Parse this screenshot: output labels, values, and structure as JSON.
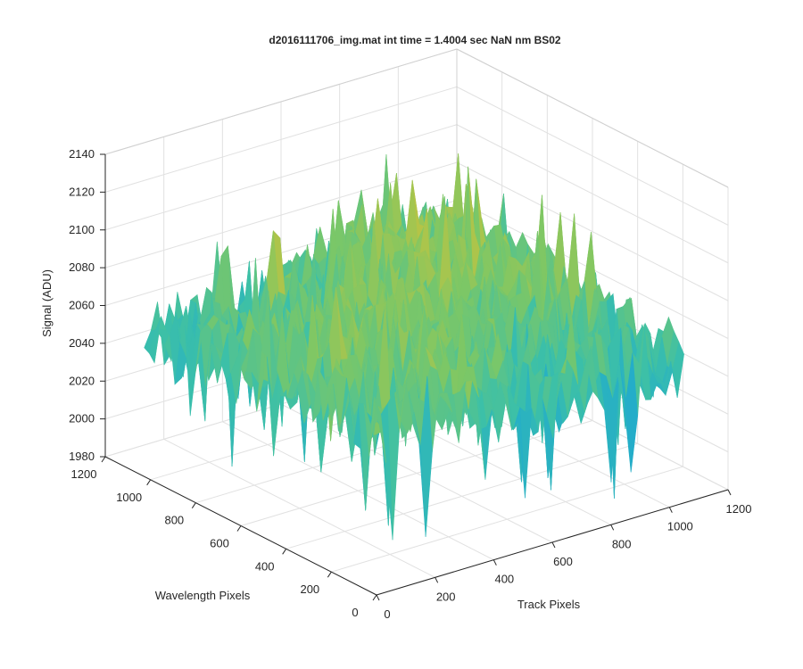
{
  "chart_data": {
    "type": "surface",
    "title": "d2016111706_img.mat int time = 1.4004 sec  NaN nm BS02",
    "xlabel": "Track Pixels",
    "ylabel": "Wavelength Pixels",
    "zlabel": "Signal (ADU)",
    "xlim": [
      0,
      1200
    ],
    "ylim": [
      0,
      1200
    ],
    "zlim": [
      1980,
      2140
    ],
    "x_ticks": [
      "0",
      "200",
      "400",
      "600",
      "800",
      "1000",
      "1200"
    ],
    "y_ticks": [
      "0",
      "200",
      "400",
      "600",
      "800",
      "1000",
      "1200"
    ],
    "z_ticks": [
      "1980",
      "2000",
      "2020",
      "2040",
      "2060",
      "2080",
      "2100",
      "2120",
      "2140"
    ],
    "grid": true,
    "colormap": [
      "#0a72d8",
      "#1aa6d6",
      "#3cc0a8",
      "#7cc766",
      "#c8c33c",
      "#f0bf3a"
    ],
    "surface_summary": {
      "typical_signal_range": [
        2040,
        2100
      ],
      "peak_signal": 2128,
      "min_signal": 1992
    }
  }
}
